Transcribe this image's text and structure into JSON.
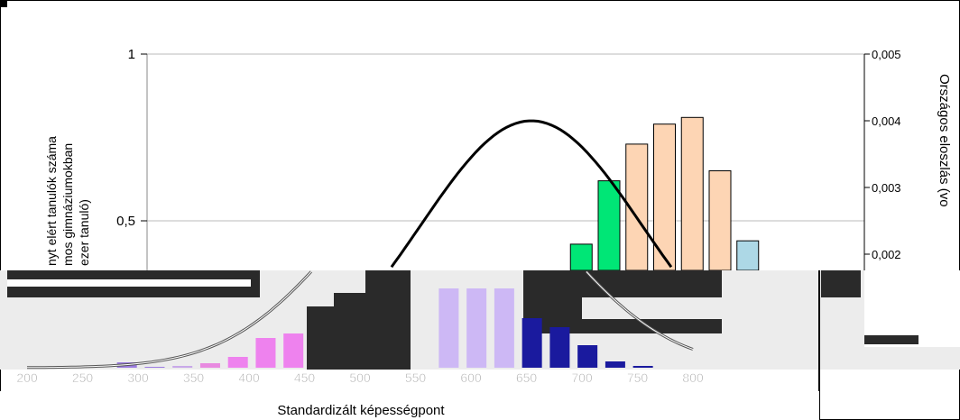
{
  "chart_data": {
    "type": "bar",
    "xlabel": "Standardizált képességpont",
    "ylabel_left_lines": [
      "nyt elért tanulók száma",
      "mos gimnáziumokban",
      "ezer tanuló)"
    ],
    "ylabel_right": "Országos eloszlás (vo",
    "left_axis": {
      "ylim": [
        0,
        1
      ],
      "ticks": [
        {
          "v": 1,
          "label": "1"
        },
        {
          "v": 0.5,
          "label": "0,5"
        }
      ]
    },
    "right_axis": {
      "ylim": [
        0,
        0.005
      ],
      "ticks": [
        {
          "v": 0.005,
          "label": "0,005"
        },
        {
          "v": 0.004,
          "label": "0,004"
        },
        {
          "v": 0.003,
          "label": "0,003"
        },
        {
          "v": 0.002,
          "label": "0,002"
        }
      ]
    },
    "x_ticks": [
      "200",
      "250",
      "300",
      "350",
      "400",
      "450",
      "500",
      "550",
      "600",
      "650",
      "700",
      "750",
      "800"
    ],
    "xlim": [
      200,
      800
    ],
    "bars_top_panel": [
      {
        "x": 675,
        "value": 0.43,
        "color": "#00e676"
      },
      {
        "x": 700,
        "value": 0.62,
        "color": "#00e676"
      },
      {
        "x": 725,
        "value": 0.73,
        "color": "#fdd5b4"
      },
      {
        "x": 750,
        "value": 0.79,
        "color": "#fdd5b4"
      },
      {
        "x": 775,
        "value": 0.81,
        "color": "#fdd5b4"
      },
      {
        "x": 800,
        "value": 0.65,
        "color": "#fdd5b4"
      },
      {
        "x": 825,
        "value": 0.44,
        "color": "#add8e6"
      }
    ],
    "bars_bottom_panel": [
      {
        "x": 290,
        "value": 0.06,
        "color": "#9b7be0"
      },
      {
        "x": 315,
        "value": 0.01,
        "color": "#9b7be0"
      },
      {
        "x": 340,
        "value": 0.02,
        "color": "#c8a8e8"
      },
      {
        "x": 365,
        "value": 0.05,
        "color": "#e88ae0"
      },
      {
        "x": 390,
        "value": 0.12,
        "color": "#ee82ee"
      },
      {
        "x": 415,
        "value": 0.33,
        "color": "#ee82ee"
      },
      {
        "x": 440,
        "value": 0.38,
        "color": "#ee82ee"
      },
      {
        "x": 580,
        "value": 0.88,
        "color": "#cdb8f5"
      },
      {
        "x": 605,
        "value": 0.88,
        "color": "#cdb8f5"
      },
      {
        "x": 630,
        "value": 0.88,
        "color": "#cdb8f5"
      },
      {
        "x": 655,
        "value": 0.55,
        "color": "#1a1a9e"
      },
      {
        "x": 680,
        "value": 0.45,
        "color": "#1a1a9e"
      },
      {
        "x": 705,
        "value": 0.25,
        "color": "#1a1a9e"
      },
      {
        "x": 730,
        "value": 0.07,
        "color": "#1a1a9e"
      },
      {
        "x": 755,
        "value": 0.02,
        "color": "#1a1a9e"
      }
    ],
    "curve": {
      "mean": 630,
      "sd": 100,
      "peak_right_axis": 0.004
    }
  }
}
